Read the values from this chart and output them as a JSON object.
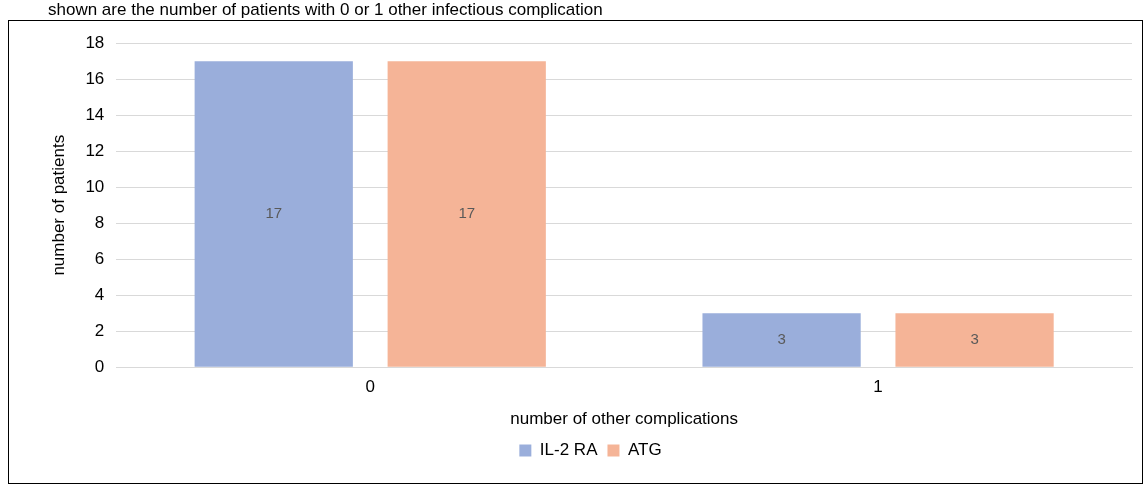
{
  "chart_data": {
    "type": "bar",
    "title": "shown are the number of patients with 0 or 1 other infectious complication",
    "xlabel": "number of other complications",
    "ylabel": "number of patients",
    "categories": [
      "0",
      "1"
    ],
    "series": [
      {
        "name": "IL-2 RA",
        "color": "#9aaedb",
        "values": [
          17,
          3
        ]
      },
      {
        "name": "ATG",
        "color": "#f5b497",
        "values": [
          17,
          3
        ]
      }
    ],
    "ylim": [
      0,
      18
    ],
    "yticks": [
      0,
      2,
      4,
      6,
      8,
      10,
      12,
      14,
      16,
      18
    ],
    "grid": "y",
    "legend": "bottom",
    "data_labels": true
  }
}
